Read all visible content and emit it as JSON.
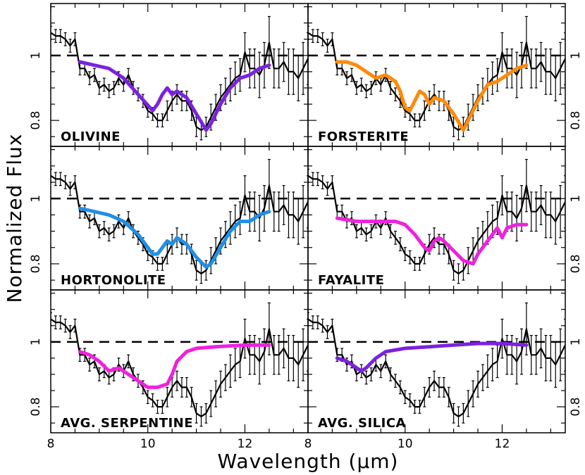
{
  "figure": {
    "xlabel": "Wavelength (μm)",
    "ylabel": "Normalized Flux"
  },
  "chart_data": {
    "type": "line",
    "layout": "3 rows x 2 columns, shared axes",
    "xlabel": "Wavelength (μm)",
    "ylabel": "Normalized Flux",
    "xlim": [
      8.0,
      13.3
    ],
    "ylim": [
      0.72,
      1.16
    ],
    "x_ticks": [
      8,
      10,
      12
    ],
    "y_ticks": [
      0.8,
      1.0
    ],
    "x_tick_labels": [
      "8",
      "10",
      "12"
    ],
    "y_tick_labels": [
      "0.8",
      "1"
    ],
    "reference_line": {
      "y": 1.0,
      "style": "dashed"
    },
    "observed": {
      "x": [
        8.0,
        8.1,
        8.2,
        8.3,
        8.4,
        8.5,
        8.6,
        8.7,
        8.8,
        8.9,
        9.0,
        9.1,
        9.2,
        9.3,
        9.4,
        9.5,
        9.6,
        9.7,
        9.8,
        9.9,
        10.0,
        10.1,
        10.2,
        10.3,
        10.4,
        10.5,
        10.6,
        10.7,
        10.8,
        10.9,
        11.0,
        11.1,
        11.2,
        11.3,
        11.4,
        11.5,
        11.6,
        11.7,
        11.8,
        11.9,
        12.0,
        12.1,
        12.2,
        12.3,
        12.4,
        12.5,
        12.6,
        12.7,
        12.8,
        12.9,
        13.0,
        13.1,
        13.2,
        13.3
      ],
      "y": [
        1.07,
        1.06,
        1.06,
        1.05,
        1.03,
        1.05,
        0.96,
        0.96,
        0.93,
        0.94,
        0.9,
        0.91,
        0.89,
        0.9,
        0.93,
        0.91,
        0.94,
        0.9,
        0.88,
        0.86,
        0.83,
        0.82,
        0.8,
        0.8,
        0.83,
        0.86,
        0.88,
        0.86,
        0.86,
        0.83,
        0.78,
        0.77,
        0.78,
        0.81,
        0.84,
        0.87,
        0.89,
        0.91,
        0.93,
        0.94,
        1.01,
        0.96,
        0.96,
        0.94,
        0.97,
        1.04,
        0.96,
        0.96,
        0.98,
        0.95,
        0.95,
        0.93,
        0.96,
        0.99
      ],
      "yerr": [
        0.02,
        0.02,
        0.02,
        0.02,
        0.02,
        0.02,
        0.02,
        0.02,
        0.02,
        0.02,
        0.02,
        0.02,
        0.02,
        0.02,
        0.02,
        0.02,
        0.02,
        0.02,
        0.02,
        0.02,
        0.02,
        0.02,
        0.02,
        0.02,
        0.03,
        0.03,
        0.03,
        0.03,
        0.03,
        0.03,
        0.03,
        0.03,
        0.03,
        0.04,
        0.04,
        0.04,
        0.04,
        0.05,
        0.05,
        0.05,
        0.06,
        0.06,
        0.06,
        0.07,
        0.07,
        0.08,
        0.06,
        0.06,
        0.06,
        0.07,
        0.07,
        0.07,
        0.08,
        0.08
      ]
    },
    "panels": [
      {
        "label": "OLIVINE",
        "color": "#7b22e0",
        "model_x": [
          8.6,
          8.9,
          9.2,
          9.5,
          9.8,
          10.1,
          10.2,
          10.3,
          10.4,
          10.5,
          10.6,
          10.8,
          11.0,
          11.2,
          11.3,
          11.5,
          11.7,
          11.9,
          12.1,
          12.3,
          12.5
        ],
        "model_y": [
          0.98,
          0.97,
          0.96,
          0.93,
          0.88,
          0.83,
          0.85,
          0.88,
          0.9,
          0.88,
          0.89,
          0.87,
          0.82,
          0.77,
          0.79,
          0.85,
          0.9,
          0.93,
          0.94,
          0.96,
          0.97
        ]
      },
      {
        "label": "FORSTERITE",
        "color": "#ff8a0a",
        "model_x": [
          8.6,
          8.8,
          9.0,
          9.2,
          9.4,
          9.6,
          9.8,
          9.9,
          10.0,
          10.1,
          10.2,
          10.3,
          10.4,
          10.5,
          10.6,
          10.8,
          11.0,
          11.2,
          11.3,
          11.5,
          11.7,
          11.9,
          12.1,
          12.3,
          12.5
        ],
        "model_y": [
          0.98,
          0.98,
          0.97,
          0.95,
          0.93,
          0.94,
          0.92,
          0.89,
          0.84,
          0.83,
          0.86,
          0.89,
          0.88,
          0.85,
          0.87,
          0.86,
          0.82,
          0.77,
          0.8,
          0.86,
          0.91,
          0.92,
          0.94,
          0.96,
          0.97
        ]
      },
      {
        "label": "HORTONOLITE",
        "color": "#1f8fe8",
        "model_x": [
          8.6,
          8.9,
          9.2,
          9.5,
          9.8,
          10.1,
          10.2,
          10.3,
          10.4,
          10.5,
          10.6,
          10.8,
          11.0,
          11.2,
          11.3,
          11.5,
          11.7,
          11.9,
          12.1,
          12.3,
          12.5
        ],
        "model_y": [
          0.97,
          0.96,
          0.95,
          0.93,
          0.89,
          0.83,
          0.83,
          0.85,
          0.87,
          0.86,
          0.88,
          0.86,
          0.82,
          0.79,
          0.8,
          0.85,
          0.9,
          0.93,
          0.93,
          0.95,
          0.96
        ]
      },
      {
        "label": "FAYALITE",
        "color": "#ee22dd",
        "model_x": [
          8.6,
          9.0,
          9.4,
          9.8,
          10.0,
          10.2,
          10.4,
          10.5,
          10.6,
          10.7,
          10.8,
          11.0,
          11.2,
          11.4,
          11.5,
          11.7,
          11.9,
          12.0,
          12.1,
          12.3,
          12.5
        ],
        "model_y": [
          0.94,
          0.93,
          0.93,
          0.93,
          0.92,
          0.89,
          0.85,
          0.84,
          0.87,
          0.88,
          0.87,
          0.84,
          0.81,
          0.8,
          0.83,
          0.87,
          0.91,
          0.88,
          0.91,
          0.92,
          0.92
        ]
      },
      {
        "label": "AVG. SERPENTINE",
        "color": "#ee22dd",
        "model_x": [
          8.6,
          8.8,
          9.0,
          9.2,
          9.4,
          9.6,
          9.8,
          10.0,
          10.2,
          10.4,
          10.5,
          10.6,
          10.8,
          11.0,
          11.4,
          12.0,
          12.5
        ],
        "model_y": [
          0.97,
          0.96,
          0.94,
          0.91,
          0.92,
          0.9,
          0.88,
          0.86,
          0.86,
          0.87,
          0.9,
          0.94,
          0.97,
          0.98,
          0.985,
          0.99,
          0.99
        ]
      },
      {
        "label": "AVG. SILICA",
        "color": "#7b22e0",
        "model_x": [
          8.6,
          8.8,
          9.0,
          9.1,
          9.2,
          9.4,
          9.6,
          10.0,
          10.5,
          11.0,
          11.5,
          12.0,
          12.5
        ],
        "model_y": [
          0.95,
          0.94,
          0.92,
          0.91,
          0.92,
          0.95,
          0.97,
          0.98,
          0.985,
          0.99,
          0.995,
          0.995,
          0.99
        ]
      }
    ]
  }
}
